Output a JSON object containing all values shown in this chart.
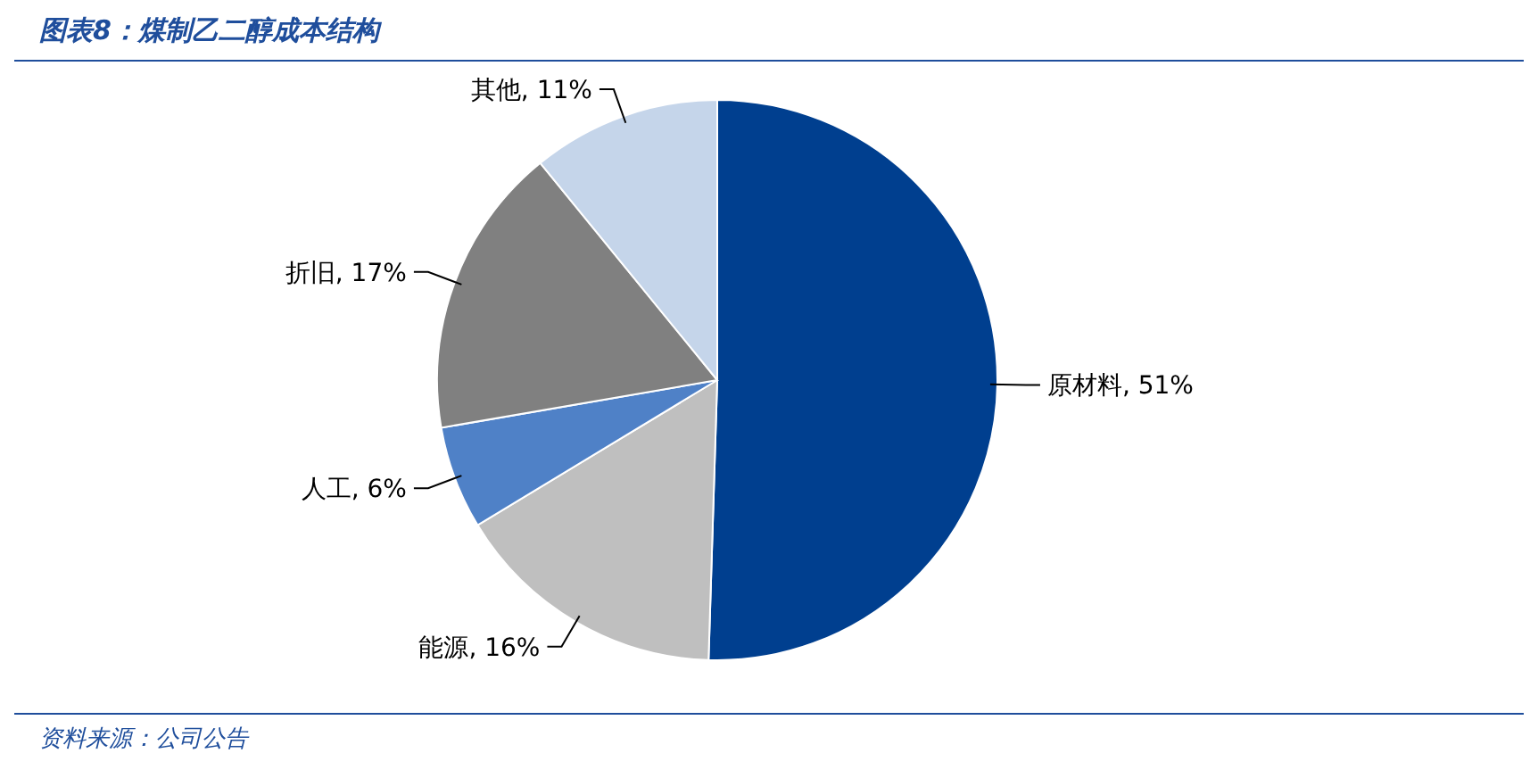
{
  "chart_data": {
    "type": "pie",
    "title": "图表8：煤制乙二醇成本结构",
    "categories": [
      "原材料",
      "能源",
      "人工",
      "折旧",
      "其他"
    ],
    "values": [
      51,
      16,
      6,
      17,
      11
    ],
    "colors": [
      "#003f8f",
      "#bfbfbf",
      "#4f81c7",
      "#808080",
      "#c5d5ea"
    ],
    "value_labels": [
      ", 51%",
      ", 16%",
      ", 6%",
      ", 17%",
      ", 11%"
    ],
    "annotations": [
      "资料来源：公司公告"
    ]
  }
}
